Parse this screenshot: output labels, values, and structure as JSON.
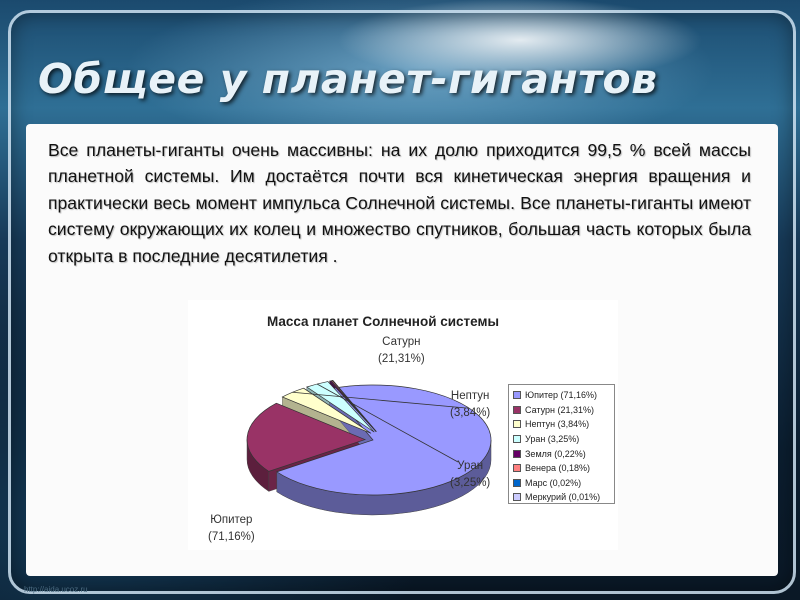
{
  "slide": {
    "title": "Общее у планет-гигантов",
    "body": "Все планеты-гиганты очень массивны: на их долю приходится 99,5 % всей массы планетной системы. Им достаётся почти вся кинетическая энергия вращения и практически весь момент импульса Солнечной системы. Все планеты-гиганты имеют систему окружающих их колец и множество спутников, большая часть которых была открыта в последние десятилетия .",
    "watermark": "http://aida.ucoz.ru"
  },
  "chart_data": {
    "type": "pie",
    "title": "Масса планет Солнечной системы",
    "categories": [
      "Юпитер",
      "Сатурн",
      "Нептун",
      "Уран",
      "Земля",
      "Венера",
      "Марс",
      "Меркурий"
    ],
    "values": [
      71.16,
      21.31,
      3.84,
      3.25,
      0.22,
      0.18,
      0.02,
      0.01
    ],
    "colors": [
      "#9999ff",
      "#993366",
      "#ffffcc",
      "#ccffff",
      "#660066",
      "#ff8080",
      "#0066cc",
      "#ccccff"
    ],
    "legend": [
      "Юпитер (71,16%)",
      "Сатурн (21,31%)",
      "Нептун (3,84%)",
      "Уран (3,25%)",
      "Земля (0,22%)",
      "Венера (0,18%)",
      "Марс (0,02%)",
      "Меркурий (0,01%)"
    ],
    "slice_labels": [
      {
        "name": "Юпитер",
        "pct": "(71,16%)"
      },
      {
        "name": "Сатурн",
        "pct": "(21,31%)"
      },
      {
        "name": "Нептун",
        "pct": "(3,84%)"
      },
      {
        "name": "Уран",
        "pct": "(3,25%)"
      }
    ],
    "exploded": true,
    "three_d": true,
    "legend_position": "right"
  }
}
